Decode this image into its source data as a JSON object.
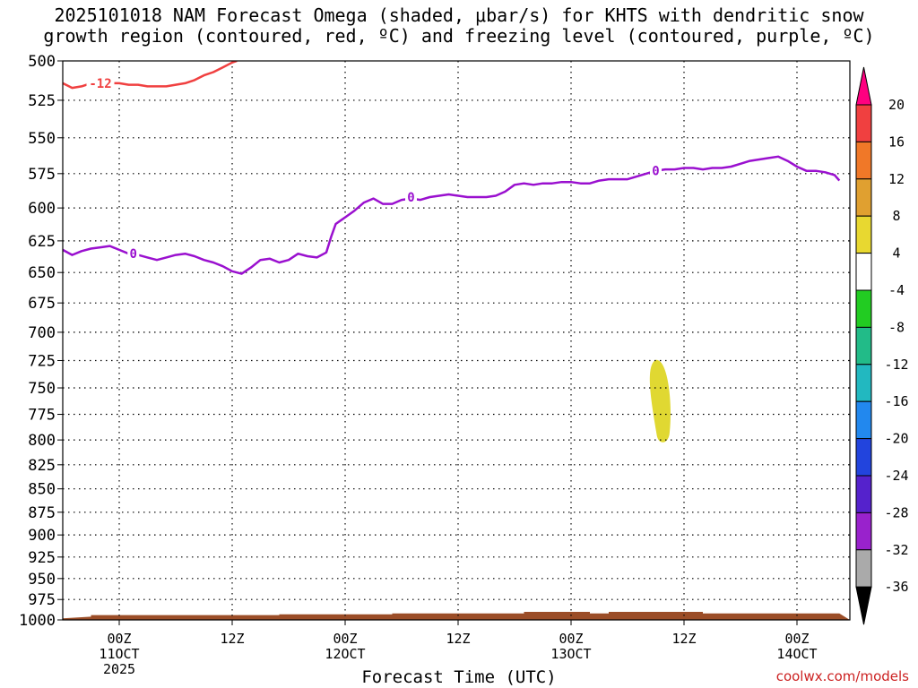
{
  "title_lines": [
    "2025101018 NAM Forecast Omega (shaded, μbar/s) for KHTS with dendritic snow",
    "growth region (contoured, red, ºC) and freezing level (contoured, purple, ºC)"
  ],
  "xaxis_title": "Forecast Time (UTC)",
  "credit": "coolwx.com/models",
  "chart_data": {
    "type": "contour",
    "x_start_hours_before_first_tick": 5,
    "y_levels": [
      500,
      525,
      550,
      575,
      600,
      625,
      650,
      675,
      700,
      725,
      750,
      775,
      800,
      825,
      850,
      875,
      900,
      925,
      950,
      975,
      1000
    ],
    "ylim": [
      500,
      1000
    ],
    "x_ticks": [
      {
        "label": "00Z",
        "date": "11OCT",
        "year": "2025"
      },
      {
        "label": "12Z",
        "date": "",
        "year": ""
      },
      {
        "label": "00Z",
        "date": "12OCT",
        "year": ""
      },
      {
        "label": "12Z",
        "date": "",
        "year": ""
      },
      {
        "label": "00Z",
        "date": "13OCT",
        "year": ""
      },
      {
        "label": "12Z",
        "date": "",
        "year": ""
      },
      {
        "label": "00Z",
        "date": "14OCT",
        "year": ""
      }
    ],
    "colorbar": {
      "labels": [
        "20",
        "16",
        "12",
        "8",
        "4",
        "-4",
        "-8",
        "-12",
        "-16",
        "-20",
        "-24",
        "-28",
        "-32",
        "-36"
      ],
      "colors": [
        "#ff0080",
        "#f04040",
        "#f07828",
        "#e0a030",
        "#e8d830",
        "#ffffff",
        "#22cc22",
        "#22bb88",
        "#22b8c0",
        "#2288ee",
        "#2244dd",
        "#5522cc",
        "#9922cc",
        "#aaaaaa",
        "#000000"
      ]
    },
    "freezing_level": {
      "color": "#9a10cf",
      "label": "0",
      "points": [
        [
          0,
          632
        ],
        [
          1,
          636
        ],
        [
          2,
          633
        ],
        [
          3,
          631
        ],
        [
          4,
          630
        ],
        [
          5,
          629
        ],
        [
          6,
          632
        ],
        [
          7,
          635
        ],
        [
          8,
          636
        ],
        [
          9,
          638
        ],
        [
          10,
          640
        ],
        [
          11,
          638
        ],
        [
          12,
          636
        ],
        [
          13,
          635
        ],
        [
          14,
          637
        ],
        [
          15,
          640
        ],
        [
          16,
          642
        ],
        [
          17,
          645
        ],
        [
          18,
          649
        ],
        [
          19,
          651
        ],
        [
          20,
          646
        ],
        [
          21,
          640
        ],
        [
          22,
          639
        ],
        [
          23,
          642
        ],
        [
          24,
          640
        ],
        [
          25,
          635
        ],
        [
          26,
          637
        ],
        [
          27,
          638
        ],
        [
          28,
          634
        ],
        [
          28.5,
          622
        ],
        [
          29,
          612
        ],
        [
          30,
          607
        ],
        [
          31,
          602
        ],
        [
          32,
          596
        ],
        [
          33,
          593
        ],
        [
          34,
          597
        ],
        [
          35,
          597
        ],
        [
          36,
          594
        ],
        [
          37,
          593
        ],
        [
          38,
          594
        ],
        [
          39,
          592
        ],
        [
          40,
          591
        ],
        [
          41,
          590
        ],
        [
          42,
          591
        ],
        [
          43,
          592
        ],
        [
          44,
          592
        ],
        [
          45,
          592
        ],
        [
          46,
          591
        ],
        [
          47,
          588
        ],
        [
          48,
          583
        ],
        [
          49,
          582
        ],
        [
          50,
          583
        ],
        [
          51,
          582
        ],
        [
          52,
          582
        ],
        [
          53,
          581
        ],
        [
          54,
          581
        ],
        [
          55,
          582
        ],
        [
          56,
          582
        ],
        [
          57,
          580
        ],
        [
          58,
          579
        ],
        [
          59,
          579
        ],
        [
          60,
          579
        ],
        [
          61,
          577
        ],
        [
          62,
          575
        ],
        [
          63,
          573
        ],
        [
          64,
          572
        ],
        [
          65,
          572
        ],
        [
          66,
          571
        ],
        [
          67,
          571
        ],
        [
          68,
          572
        ],
        [
          69,
          571
        ],
        [
          70,
          571
        ],
        [
          71,
          570
        ],
        [
          72,
          568
        ],
        [
          73,
          566
        ],
        [
          74,
          565
        ],
        [
          75,
          564
        ],
        [
          76,
          563
        ],
        [
          77,
          566
        ],
        [
          78,
          570
        ],
        [
          79,
          573
        ],
        [
          80,
          573
        ],
        [
          81,
          574
        ],
        [
          82,
          576
        ],
        [
          82.5,
          580
        ]
      ],
      "label_positions": [
        [
          7.5,
          635
        ],
        [
          37,
          592
        ],
        [
          63,
          573
        ]
      ]
    },
    "dgz_line": {
      "color": "#f04040",
      "label": "-12",
      "points": [
        [
          0,
          514
        ],
        [
          1,
          517
        ],
        [
          2,
          516
        ],
        [
          3,
          514
        ],
        [
          4,
          515
        ],
        [
          5,
          514
        ],
        [
          6,
          514
        ],
        [
          7,
          515
        ],
        [
          8,
          515
        ],
        [
          9,
          516
        ],
        [
          10,
          516
        ],
        [
          11,
          516
        ],
        [
          12,
          515
        ],
        [
          13,
          514
        ],
        [
          14,
          512
        ],
        [
          15,
          509
        ],
        [
          16,
          507
        ],
        [
          17,
          504
        ],
        [
          18,
          501
        ],
        [
          18.5,
          500
        ]
      ],
      "label_positions": [
        [
          4,
          514
        ]
      ]
    },
    "omega_blobs": [
      {
        "color": "#e0d832",
        "value_range": "4 to 8",
        "center_hours": 63.5,
        "top_hPa": 723,
        "bottom_hPa": 803
      }
    ],
    "terrain": {
      "color": "#9b4d27",
      "surface_hPa": [
        [
          0,
          998
        ],
        [
          3,
          996
        ],
        [
          3,
          994
        ],
        [
          23,
          994
        ],
        [
          23,
          993
        ],
        [
          35,
          993
        ],
        [
          35,
          992
        ],
        [
          49,
          992
        ],
        [
          49,
          990
        ],
        [
          56,
          990
        ],
        [
          56,
          992
        ],
        [
          58,
          992
        ],
        [
          58,
          990
        ],
        [
          68,
          990
        ],
        [
          68,
          992
        ],
        [
          82.5,
          992
        ]
      ]
    }
  }
}
